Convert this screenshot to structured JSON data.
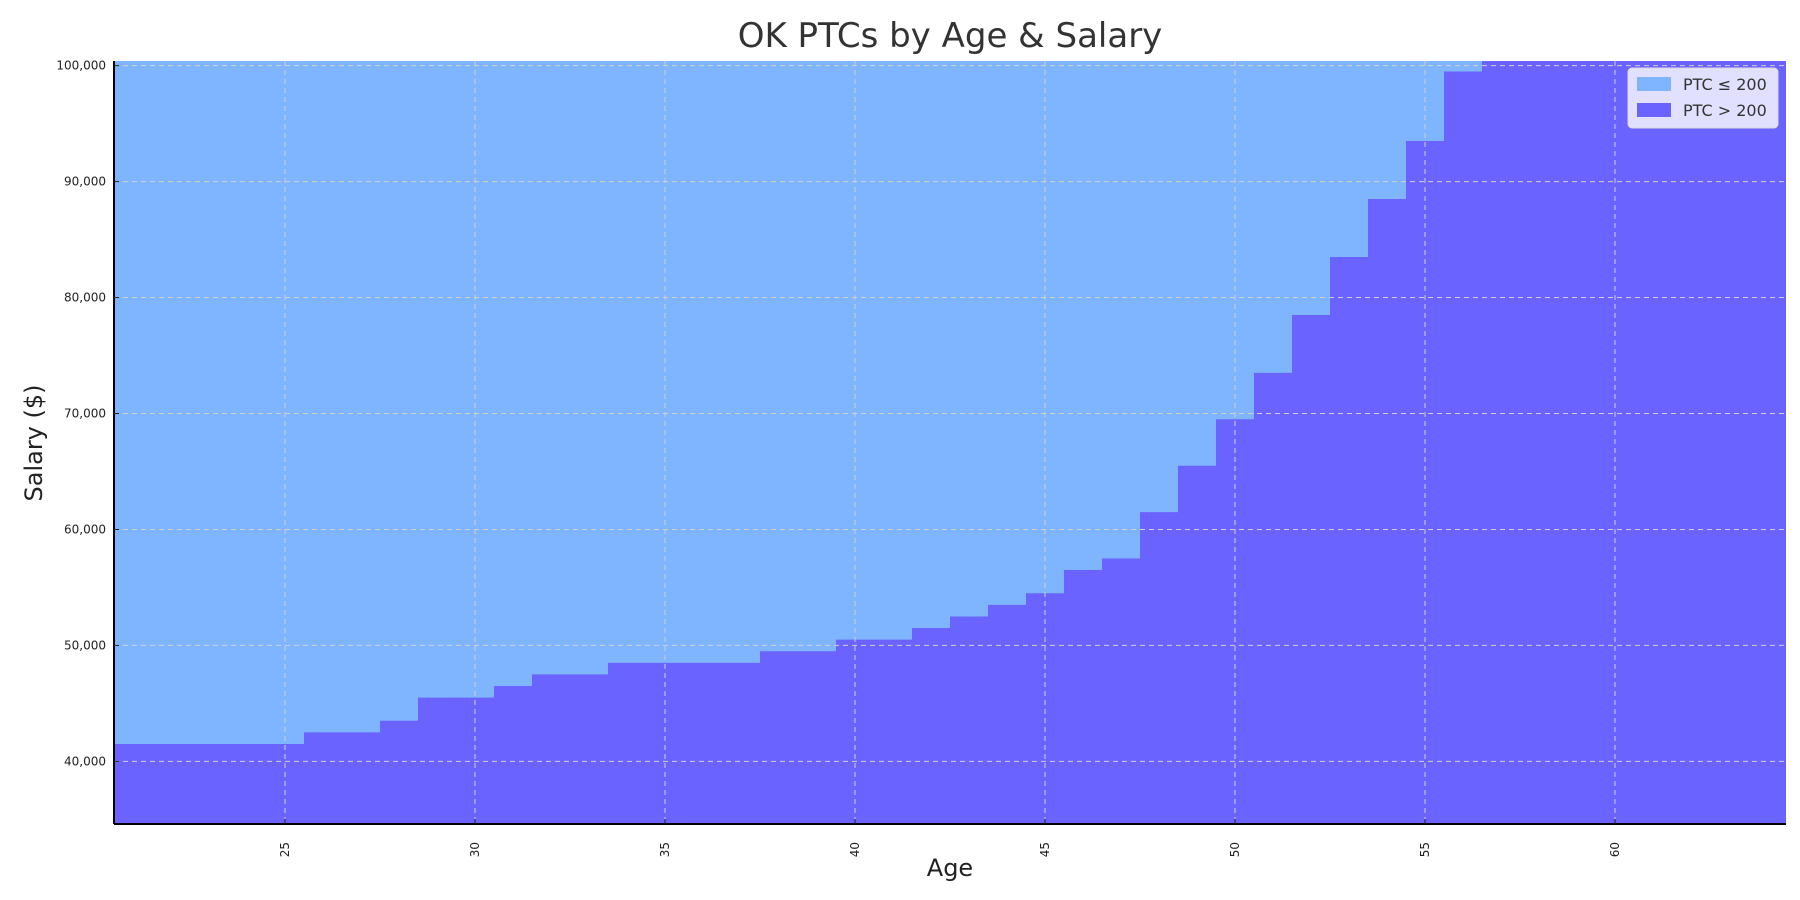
{
  "chart_data": {
    "type": "area",
    "title": "OK PTCs by Age & Salary",
    "xlabel": "Age",
    "ylabel": "Salary ($)",
    "xlim": [
      20.5,
      64.5
    ],
    "ylim": [
      34600,
      100400
    ],
    "x_ticks": [
      25,
      30,
      35,
      40,
      45,
      50,
      55,
      60
    ],
    "y_ticks": [
      40000,
      50000,
      60000,
      70000,
      80000,
      90000,
      100000
    ],
    "y_tick_labels": [
      "40,000",
      "50,000",
      "60,000",
      "70,000",
      "80,000",
      "90,000",
      "100,000"
    ],
    "grid": true,
    "legend_position": "top-right",
    "colors": {
      "ptc_le_200": "#7fb5ff",
      "ptc_gt_200": "#6b63ff"
    },
    "series": [
      {
        "name": "PTC ≤ 200",
        "color": "#7fb5ff"
      },
      {
        "name": "PTC > 200",
        "color": "#6b63ff"
      }
    ],
    "threshold": {
      "ages": [
        21,
        22,
        23,
        24,
        25,
        26,
        27,
        28,
        29,
        30,
        31,
        32,
        33,
        34,
        35,
        36,
        37,
        38,
        39,
        40,
        41,
        42,
        43,
        44,
        45,
        46,
        47,
        48,
        49,
        50,
        51,
        52,
        53,
        54,
        55,
        56,
        57,
        58,
        59,
        60,
        61,
        62,
        63,
        64
      ],
      "salary": [
        41500,
        41500,
        41500,
        41500,
        41500,
        42500,
        42500,
        43500,
        45500,
        45500,
        46500,
        47500,
        47500,
        48500,
        48500,
        48500,
        48500,
        49500,
        49500,
        50500,
        50500,
        51500,
        52500,
        53500,
        54500,
        56500,
        57500,
        61500,
        65500,
        69500,
        73500,
        78500,
        83500,
        88500,
        93500,
        99500,
        100500,
        100500,
        100500,
        100500,
        100500,
        100500,
        100500,
        100500
      ]
    }
  }
}
